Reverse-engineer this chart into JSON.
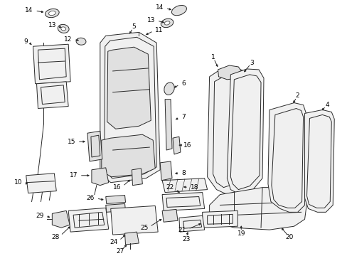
{
  "bg_color": "#ffffff",
  "lc": "#2a2a2a",
  "fc_light": "#f0f0f0",
  "fc_mid": "#e0e0e0",
  "fc_dark": "#cccccc",
  "lw": 0.7,
  "fs": 6.5,
  "figsize": [
    4.89,
    3.6
  ],
  "dpi": 100,
  "xlim": [
    0,
    489
  ],
  "ylim": [
    0,
    360
  ]
}
